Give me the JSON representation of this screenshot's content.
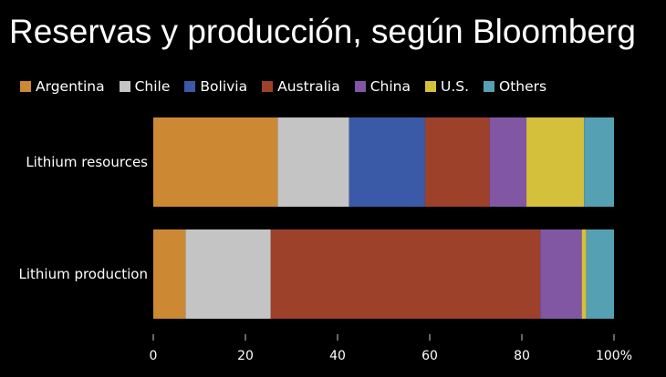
{
  "chart_data": {
    "type": "bar",
    "orientation": "horizontal",
    "stacked": true,
    "title": "Reservas y producción, según Bloomberg",
    "xlabel": "",
    "ylabel": "",
    "xlim": [
      0,
      100
    ],
    "ticks": [
      {
        "value": 0,
        "label": "0"
      },
      {
        "value": 20,
        "label": "20"
      },
      {
        "value": 40,
        "label": "40"
      },
      {
        "value": 60,
        "label": "60"
      },
      {
        "value": 80,
        "label": "80"
      },
      {
        "value": 100,
        "label": "100%"
      }
    ],
    "legend_position": "top-left",
    "grid": false,
    "categories": [
      "Lithium resources",
      "Lithium production"
    ],
    "series": [
      {
        "name": "Argentina",
        "color": "#cc8833",
        "values": [
          27,
          7
        ]
      },
      {
        "name": "Chile",
        "color": "#c4c4c4",
        "values": [
          15.5,
          18.5
        ]
      },
      {
        "name": "Bolivia",
        "color": "#3a5aa8",
        "values": [
          16.5,
          0
        ]
      },
      {
        "name": "Australia",
        "color": "#9e412a",
        "values": [
          14,
          58.5
        ]
      },
      {
        "name": "China",
        "color": "#8157a3",
        "values": [
          8,
          9
        ]
      },
      {
        "name": "U.S.",
        "color": "#d4c03a",
        "values": [
          12.5,
          1
        ]
      },
      {
        "name": "Others",
        "color": "#55a0b2",
        "values": [
          6.5,
          6
        ]
      }
    ]
  }
}
